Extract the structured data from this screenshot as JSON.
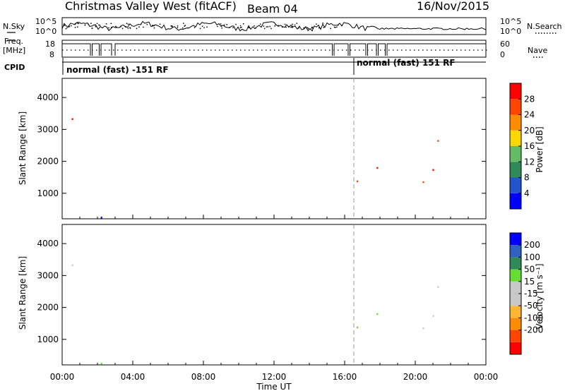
{
  "header": {
    "station": "Christmas Valley West (fitACF)",
    "beam": "Beam 04",
    "date": "16/Nov/2015"
  },
  "strip_labels": {
    "nsky": "N.Sky",
    "freq_line1": "Freq.",
    "freq_line2": "[MHz]",
    "cpid": "CPID",
    "nsearch": "N.Search",
    "nave": "Nave"
  },
  "cpid_modes": [
    {
      "label": "normal (fast) -151 RF",
      "start_hour": 0
    },
    {
      "label": "normal (fast) 151 RF",
      "start_hour": 16.2
    }
  ],
  "nsky_axis": {
    "left_ticks": [
      "10^5",
      "10^0"
    ],
    "right_ticks": [
      "10^5",
      "10^0"
    ]
  },
  "freq_axis": {
    "left_ticks": [
      "18",
      "8"
    ],
    "right_ticks": [
      "60",
      "0"
    ]
  },
  "colors": {
    "power": [
      "#0000ff",
      "#2255cc",
      "#2e8b57",
      "#66bb66",
      "#ffd700",
      "#ff8c00",
      "#ff4500",
      "#ff0000"
    ],
    "velocity": [
      "#ff0000",
      "#ff4500",
      "#ff8c00",
      "#ffb733",
      "#c8c8c8",
      "#c8c8c8",
      "#66dd33",
      "#2e8b57",
      "#3060c0",
      "#0000ff"
    ]
  },
  "chart_data": [
    {
      "type": "heatmap",
      "name": "power",
      "ylabel": "Slant Range [km]",
      "yticks": [
        1000,
        2000,
        3000,
        4000
      ],
      "ylim": [
        200,
        4600
      ],
      "xlim": [
        0,
        24
      ],
      "colorbar_label": "Power [dB]",
      "colorbar_ticks": [
        "28",
        "24",
        "20",
        "16",
        "12",
        "8",
        "4"
      ],
      "colorbar_range": [
        0,
        32
      ]
    },
    {
      "type": "heatmap",
      "name": "velocity",
      "xlabel": "Time UT",
      "ylabel": "Slant Range [km]",
      "yticks": [
        1000,
        2000,
        3000,
        4000
      ],
      "ylim": [
        200,
        4600
      ],
      "xlim": [
        0,
        24
      ],
      "xticks": [
        "00:00",
        "04:00",
        "08:00",
        "12:00",
        "16:00",
        "20:00",
        "00:00"
      ],
      "colorbar_label": "Velocity [m s⁻¹]",
      "colorbar_ticks": [
        "200",
        "100",
        "50",
        "15",
        "-15",
        "-50",
        "-100",
        "-200"
      ]
    }
  ]
}
